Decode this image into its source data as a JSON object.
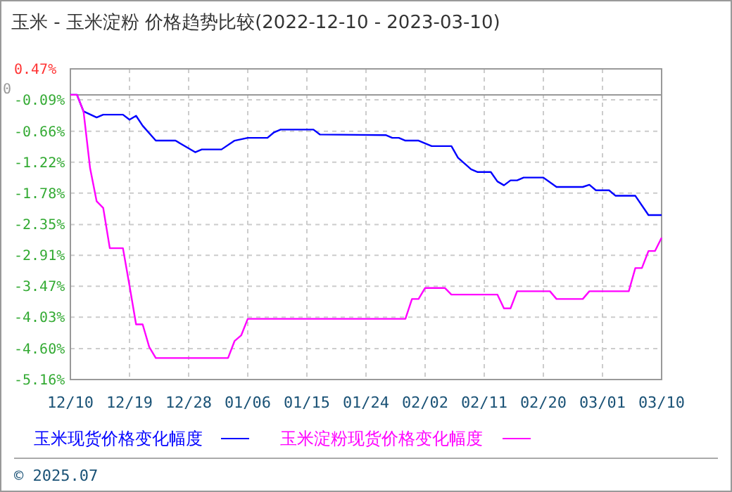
{
  "chart_data": {
    "type": "line",
    "title": "玉米 - 玉米淀粉 价格趋势比较(2022-12-10 - 2023-03-10)",
    "xlim": [
      "2022-12-10",
      "2023-03-10"
    ],
    "xticks": [
      {
        "value": "2022-12-10",
        "label": "12/10"
      },
      {
        "value": "2022-12-19",
        "label": "12/19"
      },
      {
        "value": "2022-12-28",
        "label": "12/28"
      },
      {
        "value": "2023-01-06",
        "label": "01/06"
      },
      {
        "value": "2023-01-15",
        "label": "01/15"
      },
      {
        "value": "2023-01-24",
        "label": "01/24"
      },
      {
        "value": "2023-02-02",
        "label": "02/02"
      },
      {
        "value": "2023-02-11",
        "label": "02/11"
      },
      {
        "value": "2023-02-20",
        "label": "02/20"
      },
      {
        "value": "2023-03-01",
        "label": "03/01"
      },
      {
        "value": "2023-03-10",
        "label": "03/10"
      }
    ],
    "ylim": [
      -5.16,
      0.47
    ],
    "yticks": [
      {
        "value": 0.47,
        "label": "0.47%"
      },
      {
        "value": -0.09,
        "label": "-0.09%"
      },
      {
        "value": -0.66,
        "label": "-0.66%"
      },
      {
        "value": -1.22,
        "label": "-1.22%"
      },
      {
        "value": -1.78,
        "label": "-1.78%"
      },
      {
        "value": -2.35,
        "label": "-2.35%"
      },
      {
        "value": -2.91,
        "label": "-2.91%"
      },
      {
        "value": -3.47,
        "label": "-3.47%"
      },
      {
        "value": -4.03,
        "label": "-4.03%"
      },
      {
        "value": -4.6,
        "label": "-4.60%"
      },
      {
        "value": -5.16,
        "label": "-5.16%"
      }
    ],
    "grid": true,
    "legend": "bottom",
    "ref_lines": [
      {
        "axis": "y",
        "value": 0,
        "label": "0",
        "color": "#999999"
      }
    ],
    "annotations": [
      "© 2025.07"
    ],
    "series": [
      {
        "name": "玉米现货价格变化幅度",
        "color": "#0000ff",
        "x": [
          "2022-12-10",
          "2022-12-11",
          "2022-12-12",
          "2022-12-14",
          "2022-12-15",
          "2022-12-18",
          "2022-12-19",
          "2022-12-20",
          "2022-12-21",
          "2022-12-23",
          "2022-12-26",
          "2022-12-29",
          "2022-12-30",
          "2023-01-02",
          "2023-01-04",
          "2023-01-06",
          "2023-01-09",
          "2023-01-10",
          "2023-01-11",
          "2023-01-16",
          "2023-01-17",
          "2023-01-27",
          "2023-01-28",
          "2023-01-29",
          "2023-01-30",
          "2023-02-01",
          "2023-02-03",
          "2023-02-06",
          "2023-02-07",
          "2023-02-09",
          "2023-02-10",
          "2023-02-12",
          "2023-02-13",
          "2023-02-14",
          "2023-02-15",
          "2023-02-16",
          "2023-02-17",
          "2023-02-20",
          "2023-02-22",
          "2023-02-26",
          "2023-02-27",
          "2023-02-28",
          "2023-03-02",
          "2023-03-03",
          "2023-03-06",
          "2023-03-08",
          "2023-03-10"
        ],
        "values": [
          0,
          0,
          -0.3,
          -0.41,
          -0.36,
          -0.36,
          -0.45,
          -0.38,
          -0.56,
          -0.83,
          -0.83,
          -1.04,
          -0.99,
          -0.99,
          -0.83,
          -0.78,
          -0.78,
          -0.68,
          -0.63,
          -0.63,
          -0.72,
          -0.73,
          -0.78,
          -0.78,
          -0.83,
          -0.83,
          -0.93,
          -0.93,
          -1.14,
          -1.35,
          -1.4,
          -1.4,
          -1.57,
          -1.64,
          -1.55,
          -1.55,
          -1.5,
          -1.5,
          -1.67,
          -1.67,
          -1.63,
          -1.73,
          -1.73,
          -1.83,
          -1.83,
          -2.18,
          -2.18
        ]
      },
      {
        "name": "玉米淀粉现货价格变化幅度",
        "color": "#ff00ff",
        "x": [
          "2022-12-10",
          "2022-12-11",
          "2022-12-12",
          "2022-12-13",
          "2022-12-14",
          "2022-12-15",
          "2022-12-16",
          "2022-12-18",
          "2022-12-19",
          "2022-12-20",
          "2022-12-21",
          "2022-12-22",
          "2022-12-23",
          "2023-01-03",
          "2023-01-04",
          "2023-01-05",
          "2023-01-06",
          "2023-01-30",
          "2023-01-31",
          "2023-02-01",
          "2023-02-02",
          "2023-02-05",
          "2023-02-06",
          "2023-02-13",
          "2023-02-14",
          "2023-02-15",
          "2023-02-16",
          "2023-02-21",
          "2023-02-22",
          "2023-02-26",
          "2023-02-27",
          "2023-03-05",
          "2023-03-06",
          "2023-03-07",
          "2023-03-08",
          "2023-03-09",
          "2023-03-10"
        ],
        "values": [
          0,
          0,
          -0.3,
          -1.33,
          -1.93,
          -2.05,
          -2.78,
          -2.78,
          -3.46,
          -4.16,
          -4.16,
          -4.57,
          -4.77,
          -4.77,
          -4.46,
          -4.36,
          -4.06,
          -4.06,
          -3.7,
          -3.7,
          -3.5,
          -3.5,
          -3.62,
          -3.62,
          -3.87,
          -3.87,
          -3.56,
          -3.56,
          -3.7,
          -3.7,
          -3.56,
          -3.56,
          -3.14,
          -3.14,
          -2.83,
          -2.83,
          -2.59
        ]
      }
    ]
  }
}
